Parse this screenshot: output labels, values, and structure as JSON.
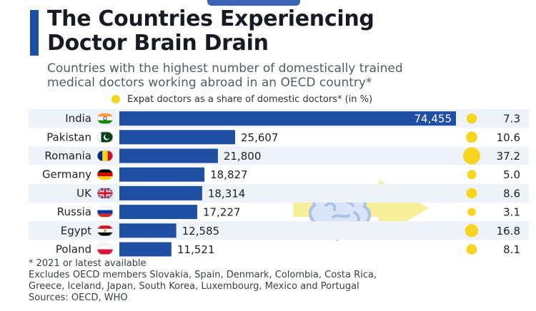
{
  "title_line1": "The Countries Experiencing",
  "title_line2": "Doctor Brain Drain",
  "subtitle_line1": "Countries with the highest number of domestically trained",
  "subtitle_line2": "medical doctors working abroad in an OECD country*",
  "legend": {
    "label": "Expat doctors as a share of domestic doctors* (in %)",
    "color": "#f7d420"
  },
  "colors": {
    "bar": "#1f4fa3",
    "dot": "#f7d420",
    "accent": "#1f4fa3",
    "arrow": "#f5ec8a",
    "brain": "#aac3e6"
  },
  "chart_data": {
    "type": "bar",
    "orientation": "horizontal",
    "categories": [
      "India",
      "Pakistan",
      "Romania",
      "Germany",
      "UK",
      "Russia",
      "Egypt",
      "Poland"
    ],
    "values": [
      74455,
      25607,
      21800,
      18827,
      18314,
      17227,
      12585,
      11521
    ],
    "value_labels": [
      "74,455",
      "25,607",
      "21,800",
      "18,827",
      "18,314",
      "17,227",
      "12,585",
      "11,521"
    ],
    "share_percent": [
      7.3,
      10.6,
      37.2,
      5.0,
      8.6,
      3.1,
      16.8,
      8.1
    ],
    "share_labels": [
      "7.3",
      "10.6",
      "37.2",
      "5.0",
      "8.6",
      "3.1",
      "16.8",
      "8.1"
    ],
    "xlim": [
      0,
      74455
    ],
    "grid": false
  },
  "flags": [
    "india",
    "pakistan",
    "romania",
    "germany",
    "uk",
    "russia",
    "egypt",
    "poland"
  ],
  "notes": {
    "footnote": "* 2021 or latest available",
    "excludes_line1": "Excludes OECD members Slovakia, Spain, Denmark, Colombia, Costa Rica,",
    "excludes_line2": "Greece, Iceland, Japan, South Korea, Luxembourg, Mexico and Portugal",
    "sources": "Sources: OECD, WHO"
  }
}
